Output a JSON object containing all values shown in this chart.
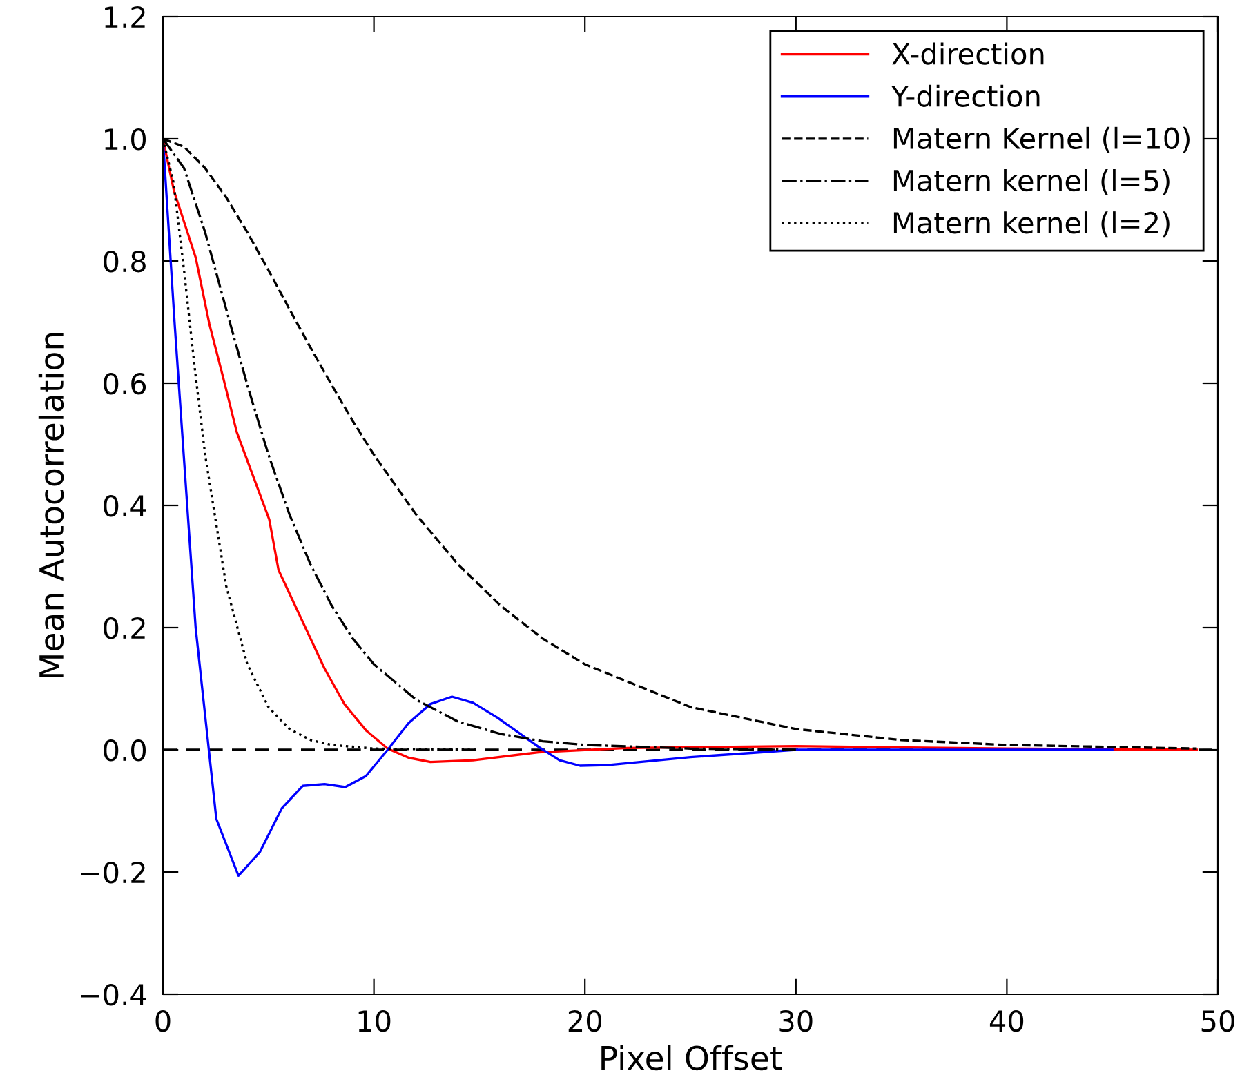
{
  "chart_data": {
    "type": "line",
    "xlabel": "Pixel Offset",
    "ylabel": "Mean Autocorrelation",
    "xlim": [
      0,
      50
    ],
    "ylim": [
      -0.4,
      1.2
    ],
    "xticks": [
      0,
      10,
      20,
      30,
      40,
      50
    ],
    "yticks": [
      {
        "value": -0.4,
        "label": "−0.4"
      },
      {
        "value": -0.2,
        "label": "−0.2"
      },
      {
        "value": 0,
        "label": "0.0"
      },
      {
        "value": 0.2,
        "label": "0.2"
      },
      {
        "value": 0.4,
        "label": "0.4"
      },
      {
        "value": 0.6,
        "label": "0.6"
      },
      {
        "value": 0.8,
        "label": "0.8"
      },
      {
        "value": 1.0,
        "label": "1.0"
      },
      {
        "value": 1.2,
        "label": "1.2"
      }
    ],
    "grid": false,
    "legend": "top right",
    "marker": "none",
    "ref_lines": [
      {
        "axis": "y",
        "value": 0,
        "color": "#000000",
        "line_style": "dashed"
      }
    ],
    "series": [
      {
        "name": "X-direction",
        "color": "#ff0000",
        "line_style": "solid",
        "x": [
          0,
          0.52,
          1.55,
          2.2,
          2.85,
          3.5,
          5.04,
          5.48,
          7.66,
          8.6,
          9.62,
          10.65,
          11.65,
          12.68,
          14.7,
          17.8,
          22,
          30,
          40,
          49
        ],
        "values": [
          1.0,
          0.915,
          0.806,
          0.697,
          0.61,
          0.52,
          0.377,
          0.294,
          0.133,
          0.075,
          0.032,
          0.002,
          -0.013,
          -0.02,
          -0.017,
          -0.004,
          0.003,
          0.006,
          0.002,
          0.0
        ]
      },
      {
        "name": "Y-direction",
        "color": "#0000ff",
        "line_style": "solid",
        "x": [
          0,
          0.55,
          1.55,
          2.53,
          3.58,
          4.6,
          5.63,
          6.63,
          7.66,
          8.64,
          9.62,
          10.65,
          11.65,
          12.68,
          13.7,
          14.7,
          15.84,
          17.8,
          18.8,
          19.77,
          21.07,
          25,
          30,
          40,
          45
        ],
        "values": [
          1.0,
          0.7,
          0.2,
          -0.113,
          -0.206,
          -0.167,
          -0.096,
          -0.059,
          -0.056,
          -0.061,
          -0.043,
          0.0,
          0.044,
          0.075,
          0.087,
          0.077,
          0.053,
          0.005,
          -0.017,
          -0.026,
          -0.025,
          -0.012,
          0.0,
          0.0,
          0.0
        ]
      },
      {
        "name": "Matern Kernel (l=10)",
        "color": "#000000",
        "line_style": "dashed",
        "x": [
          0,
          1,
          2,
          3,
          4,
          5,
          6,
          7,
          8,
          9,
          10,
          12,
          14,
          16,
          18,
          20,
          25,
          30,
          35,
          40,
          49
        ],
        "values": [
          1.0,
          0.987,
          0.952,
          0.904,
          0.847,
          0.785,
          0.721,
          0.658,
          0.597,
          0.538,
          0.483,
          0.385,
          0.303,
          0.236,
          0.182,
          0.14,
          0.07,
          0.034,
          0.016,
          0.008,
          0.002
        ]
      },
      {
        "name": "Matern kernel (l=5)",
        "color": "#000000",
        "line_style": "dashdot",
        "x": [
          0,
          1,
          2,
          3,
          4,
          5,
          6,
          7,
          8,
          9,
          10,
          12,
          14,
          16,
          18,
          20,
          25,
          30
        ],
        "values": [
          1.0,
          0.952,
          0.847,
          0.721,
          0.597,
          0.483,
          0.385,
          0.303,
          0.236,
          0.182,
          0.14,
          0.082,
          0.046,
          0.026,
          0.014,
          0.008,
          0.002,
          0.0
        ]
      },
      {
        "name": "Matern kernel (l=2)",
        "color": "#000000",
        "line_style": "dotted",
        "x": [
          0,
          0.5,
          1,
          1.5,
          2,
          3,
          4,
          5,
          6,
          7,
          8,
          10,
          15
        ],
        "values": [
          1.0,
          0.929,
          0.785,
          0.627,
          0.483,
          0.268,
          0.14,
          0.07,
          0.034,
          0.016,
          0.008,
          0.002,
          0.0
        ]
      }
    ]
  }
}
